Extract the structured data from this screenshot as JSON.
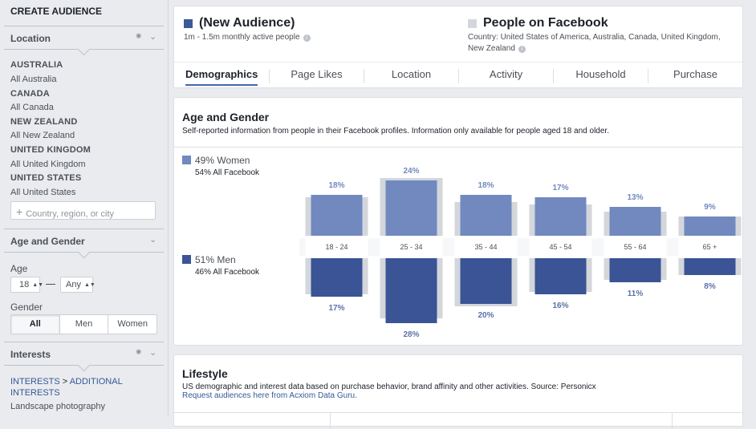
{
  "sidebar": {
    "title": "CREATE AUDIENCE",
    "location": {
      "header": "Location",
      "entries": [
        {
          "country": "AUSTRALIA",
          "region": "All Australia"
        },
        {
          "country": "CANADA",
          "region": "All Canada"
        },
        {
          "country": "NEW ZEALAND",
          "region": "All New Zealand"
        },
        {
          "country": "UNITED KINGDOM",
          "region": "All United Kingdom"
        },
        {
          "country": "UNITED STATES",
          "region": "All United States"
        }
      ],
      "input_placeholder": "Country, region, or city"
    },
    "age_gender": {
      "header": "Age and Gender",
      "age_label": "Age",
      "age_min": "18",
      "age_max": "Any",
      "gender_label": "Gender",
      "gender_options": [
        "All",
        "Men",
        "Women"
      ],
      "gender_selected": "All"
    },
    "interests": {
      "header": "Interests",
      "path_1": "INTERESTS",
      "path_sep": ">",
      "path_2": "ADDITIONAL",
      "path_3": "INTERESTS",
      "item": "Landscape photography"
    }
  },
  "summary": {
    "audience_name": "(New Audience)",
    "audience_size": "1m - 1.5m monthly active people",
    "audience_color": "#3b5998",
    "facebook_name": "People on Facebook",
    "facebook_country": "Country: United States of America, Australia, Canada, United Kingdom, New Zealand",
    "facebook_color": "#d3d6db"
  },
  "tabs": [
    "Demographics",
    "Page Likes",
    "Location",
    "Activity",
    "Household",
    "Purchase"
  ],
  "active_tab": "Demographics",
  "age_gender": {
    "title": "Age and Gender",
    "subtitle": "Self-reported information from people in their Facebook profiles. Information only available for people aged 18 and older.",
    "women_label": "49% Women",
    "women_sub": "54% All Facebook",
    "men_label": "51% Men",
    "men_sub": "46% All Facebook",
    "women_color": "#7189bf",
    "men_color": "#3a5495",
    "bg_bar_color": "#d3d6db"
  },
  "chart_data": {
    "type": "bar",
    "categories": [
      "18 - 24",
      "25 - 34",
      "35 - 44",
      "45 - 54",
      "55 - 64",
      "65 +"
    ],
    "series": [
      {
        "name": "Women",
        "values": [
          18,
          24,
          18,
          17,
          13,
          9
        ],
        "labels": [
          "18%",
          "24%",
          "18%",
          "17%",
          "13%",
          "9%"
        ]
      },
      {
        "name": "Men",
        "values": [
          17,
          28,
          20,
          16,
          11,
          8
        ],
        "labels": [
          "17%",
          "28%",
          "20%",
          "16%",
          "11%",
          "8%"
        ]
      }
    ],
    "background_series": {
      "women": [
        16,
        24,
        14,
        13,
        10,
        8
      ],
      "men": [
        15,
        25,
        20,
        14,
        9,
        7
      ]
    },
    "title": "",
    "xlabel": "",
    "ylabel": ""
  },
  "lifestyle": {
    "title": "Lifestyle",
    "subtitle": "US demographic and interest data based on purchase behavior, brand affinity and other activities. Source: Personicx",
    "link": "Request audiences here from Acxiom Data Guru."
  }
}
